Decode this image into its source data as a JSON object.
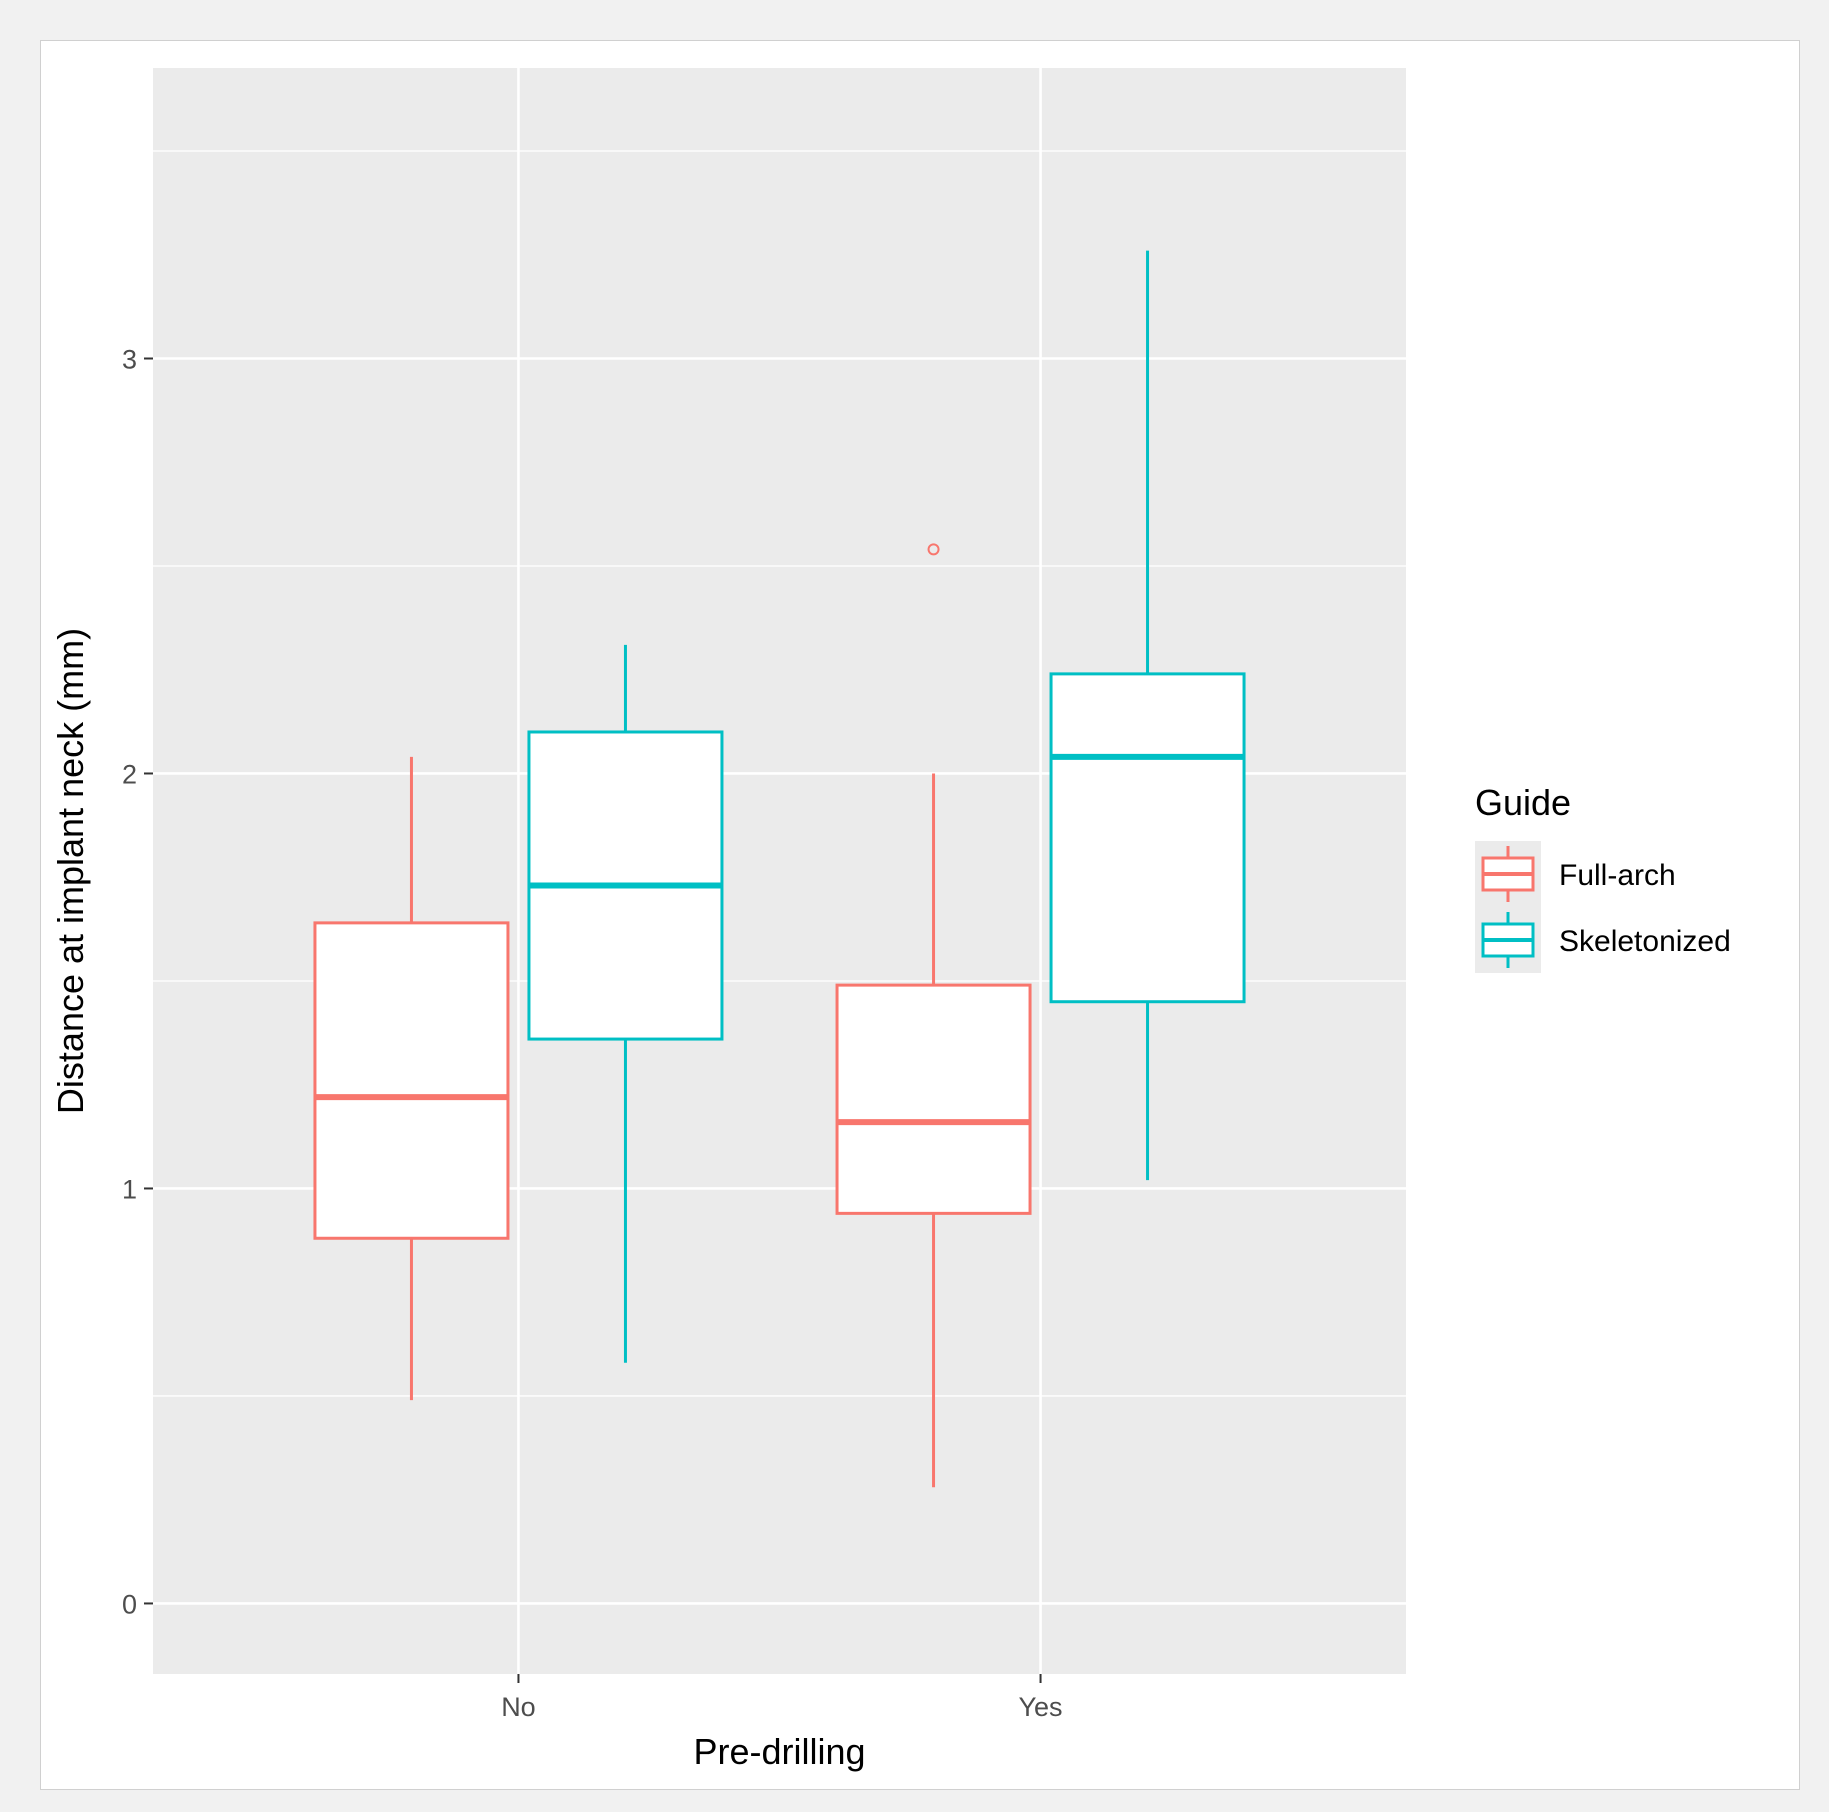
{
  "chart_data": {
    "type": "boxplot",
    "title": "",
    "xlabel": "Pre-drilling",
    "ylabel": "Distance at implant neck (mm)",
    "categories": [
      "No",
      "Yes"
    ],
    "ylim": [
      -0.17,
      3.7
    ],
    "yticks": [
      0,
      1,
      2,
      3
    ],
    "legend": {
      "title": "Guide",
      "placement": "right",
      "entries": [
        {
          "label": "Full-arch",
          "color": "#F8766D"
        },
        {
          "label": "Skeletonized",
          "color": "#00BFC4"
        }
      ]
    },
    "series": [
      {
        "name": "Full-arch",
        "color": "#F8766D",
        "boxes": [
          {
            "category": "No",
            "lower_whisker": 0.49,
            "q1": 0.88,
            "median": 1.22,
            "q3": 1.64,
            "upper_whisker": 2.04,
            "outliers": []
          },
          {
            "category": "Yes",
            "lower_whisker": 0.28,
            "q1": 0.94,
            "median": 1.16,
            "q3": 1.49,
            "upper_whisker": 2.0,
            "outliers": [
              2.54
            ]
          }
        ]
      },
      {
        "name": "Skeletonized",
        "color": "#00BFC4",
        "boxes": [
          {
            "category": "No",
            "lower_whisker": 0.58,
            "q1": 1.36,
            "median": 1.73,
            "q3": 2.1,
            "upper_whisker": 2.31,
            "outliers": []
          },
          {
            "category": "Yes",
            "lower_whisker": 1.02,
            "q1": 1.45,
            "median": 2.04,
            "q3": 2.24,
            "upper_whisker": 3.26,
            "outliers": []
          }
        ]
      }
    ]
  }
}
